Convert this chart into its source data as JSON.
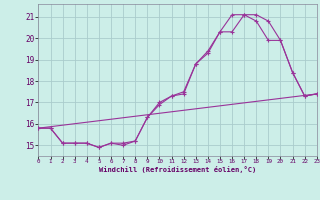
{
  "xlabel": "Windchill (Refroidissement éolien,°C)",
  "bg_color": "#cceee8",
  "grid_color": "#aacccc",
  "line_color": "#993399",
  "xlim": [
    0,
    23
  ],
  "ylim": [
    14.5,
    21.6
  ],
  "yticks": [
    15,
    16,
    17,
    18,
    19,
    20,
    21
  ],
  "xticks": [
    0,
    1,
    2,
    3,
    4,
    5,
    6,
    7,
    8,
    9,
    10,
    11,
    12,
    13,
    14,
    15,
    16,
    17,
    18,
    19,
    20,
    21,
    22,
    23
  ],
  "line1_x": [
    0,
    1,
    2,
    3,
    4,
    5,
    6,
    7,
    8,
    9,
    10,
    11,
    12,
    13,
    14,
    15,
    16,
    17,
    18,
    19,
    20,
    21,
    22,
    23
  ],
  "line1_y": [
    15.8,
    15.8,
    15.1,
    15.1,
    15.1,
    14.9,
    15.1,
    15.0,
    15.2,
    16.3,
    16.9,
    17.3,
    17.4,
    18.8,
    19.4,
    20.3,
    20.3,
    21.1,
    21.1,
    20.8,
    19.9,
    18.4,
    17.3,
    17.4
  ],
  "line2_x": [
    0,
    1,
    2,
    3,
    4,
    5,
    6,
    7,
    8,
    9,
    10,
    11,
    12,
    13,
    14,
    15,
    16,
    17,
    18,
    19,
    20,
    21,
    22,
    23
  ],
  "line2_y": [
    15.8,
    15.8,
    15.1,
    15.1,
    15.1,
    14.9,
    15.1,
    15.1,
    15.2,
    16.3,
    17.0,
    17.3,
    17.5,
    18.8,
    19.3,
    20.3,
    21.1,
    21.1,
    20.8,
    19.9,
    19.9,
    18.4,
    17.3,
    17.4
  ],
  "line3_x": [
    0,
    23
  ],
  "line3_y": [
    15.8,
    17.4
  ]
}
